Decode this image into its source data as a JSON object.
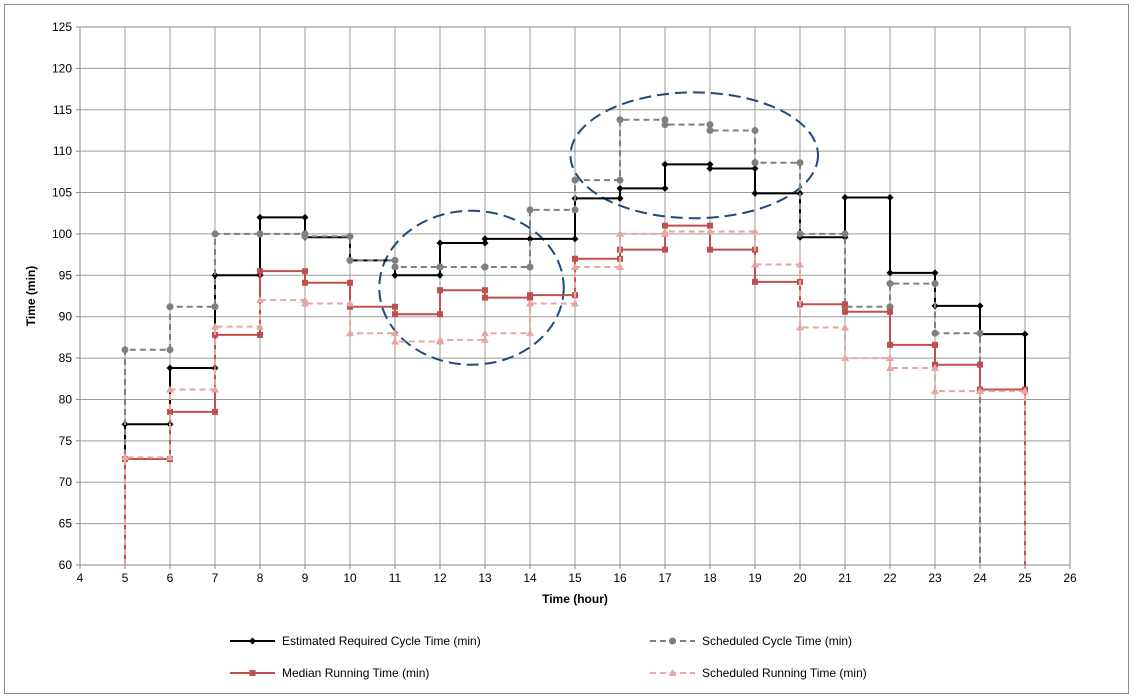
{
  "chart_data": {
    "type": "line",
    "step": true,
    "xlabel": "Time (hour)",
    "ylabel": "Time (min)",
    "xlim": [
      4,
      26
    ],
    "ylim": [
      60,
      125
    ],
    "xticks": [
      4,
      5,
      6,
      7,
      8,
      9,
      10,
      11,
      12,
      13,
      14,
      15,
      16,
      17,
      18,
      19,
      20,
      21,
      22,
      23,
      24,
      25,
      26
    ],
    "yticks": [
      60,
      65,
      70,
      75,
      80,
      85,
      90,
      95,
      100,
      105,
      110,
      115,
      120,
      125
    ],
    "grid": true,
    "legend_position": "bottom",
    "series": [
      {
        "name": "Estimated Required Cycle Time (min)",
        "color": "#000000",
        "style": "solid",
        "marker": "diamond",
        "x": [
          5,
          6,
          7,
          8,
          9,
          10,
          11,
          12,
          13,
          14,
          15,
          16,
          17,
          18,
          19,
          20,
          21,
          22,
          23,
          24,
          25
        ],
        "values": [
          77,
          83.8,
          95,
          102,
          99.6,
          96.8,
          95,
          98.9,
          99.4,
          99.4,
          104.3,
          105.5,
          108.4,
          107.9,
          104.9,
          99.6,
          104.4,
          95.3,
          91.3,
          87.9,
          null
        ]
      },
      {
        "name": "Scheduled Cycle Time (min)",
        "color": "#7f7f7f",
        "style": "dashed",
        "marker": "circle",
        "x": [
          5,
          6,
          7,
          8,
          9,
          10,
          11,
          12,
          13,
          14,
          15,
          16,
          17,
          18,
          19,
          20,
          21,
          22,
          23,
          24
        ],
        "values": [
          86,
          91.2,
          100,
          100,
          99.7,
          96.8,
          96,
          96,
          96,
          102.9,
          106.5,
          113.8,
          113.2,
          112.5,
          108.6,
          100,
          91.2,
          94,
          88,
          null
        ]
      },
      {
        "name": "Median Running Time (min)",
        "color": "#c0504d",
        "style": "solid",
        "marker": "square",
        "x": [
          5,
          6,
          7,
          8,
          9,
          10,
          11,
          12,
          13,
          14,
          15,
          16,
          17,
          18,
          19,
          20,
          21,
          22,
          23,
          24,
          25
        ],
        "values": [
          72.8,
          78.5,
          87.8,
          95.5,
          94.1,
          91.2,
          90.3,
          93.2,
          92.3,
          92.6,
          97,
          98.1,
          101,
          98.1,
          94.2,
          91.5,
          90.6,
          86.6,
          84.2,
          81.2,
          null
        ]
      },
      {
        "name": "Scheduled Running Time (min)",
        "color": "#e6a6a3",
        "style": "dashed",
        "marker": "triangle",
        "x": [
          5,
          6,
          7,
          8,
          9,
          10,
          11,
          12,
          13,
          14,
          15,
          16,
          17,
          18,
          19,
          20,
          21,
          22,
          23,
          24,
          25
        ],
        "values": [
          73,
          81.2,
          88.8,
          92,
          91.6,
          88,
          87,
          87.2,
          88,
          91.6,
          96,
          100,
          100.3,
          100.3,
          96.3,
          88.7,
          85,
          83.8,
          81,
          81,
          null
        ]
      }
    ],
    "annotations": [
      {
        "type": "ellipse",
        "cx": 12.7,
        "cy": 93.5,
        "rx": 2.05,
        "ry": 9.3,
        "color": "#1f497d",
        "style": "dashed"
      },
      {
        "type": "ellipse",
        "cx": 17.65,
        "cy": 109.5,
        "rx": 2.75,
        "ry": 7.6,
        "color": "#1f497d",
        "style": "dashed"
      }
    ]
  }
}
